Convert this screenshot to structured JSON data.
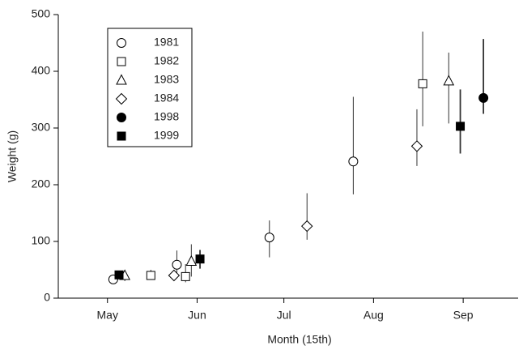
{
  "chart_data": {
    "type": "scatter",
    "x_label": "Month (15th)",
    "y_label": "Weight (g)",
    "xlim": [
      118,
      277
    ],
    "xticks": [
      {
        "value": 135,
        "label": "May"
      },
      {
        "value": 166,
        "label": "Jun"
      },
      {
        "value": 196,
        "label": "Jul"
      },
      {
        "value": 227,
        "label": "Aug"
      },
      {
        "value": 258,
        "label": "Sep"
      }
    ],
    "ylim": [
      0,
      500
    ],
    "yticks": [
      0,
      100,
      200,
      300,
      400,
      500
    ],
    "legend": "upper left",
    "series": [
      {
        "name": "1981",
        "color": "#000000",
        "marker": "circle",
        "filled": false,
        "x": [
          137,
          159,
          191,
          220
        ],
        "values": [
          33,
          59,
          107,
          241
        ],
        "err_low": [
          28,
          40,
          72,
          183
        ],
        "err_high": [
          40,
          84,
          137,
          355
        ]
      },
      {
        "name": "1982",
        "color": "#000000",
        "marker": "square",
        "filled": false,
        "x": [
          150,
          162,
          244
        ],
        "values": [
          40,
          38,
          378
        ],
        "err_low": [
          33,
          28,
          303
        ],
        "err_high": [
          50,
          60,
          470
        ]
      },
      {
        "name": "1983",
        "color": "#000000",
        "marker": "triangle",
        "filled": false,
        "x": [
          141,
          164,
          253
        ],
        "values": [
          40,
          65,
          383
        ],
        "err_low": [
          30,
          38,
          308
        ],
        "err_high": [
          47,
          95,
          433
        ]
      },
      {
        "name": "1984",
        "color": "#000000",
        "marker": "diamond",
        "filled": false,
        "x": [
          158,
          204,
          242
        ],
        "values": [
          40,
          127,
          268
        ],
        "err_low": [
          35,
          103,
          233
        ],
        "err_high": [
          50,
          185,
          333
        ]
      },
      {
        "name": "1998",
        "color": "#000000",
        "marker": "circle",
        "filled": true,
        "x": [
          265
        ],
        "values": [
          353
        ],
        "err_low": [
          325
        ],
        "err_high": [
          457
        ]
      },
      {
        "name": "1999",
        "color": "#000000",
        "marker": "square",
        "filled": true,
        "x": [
          139,
          167,
          257
        ],
        "values": [
          41,
          69,
          303
        ],
        "err_low": [
          35,
          52,
          255
        ],
        "err_high": [
          45,
          85,
          368
        ]
      }
    ]
  }
}
